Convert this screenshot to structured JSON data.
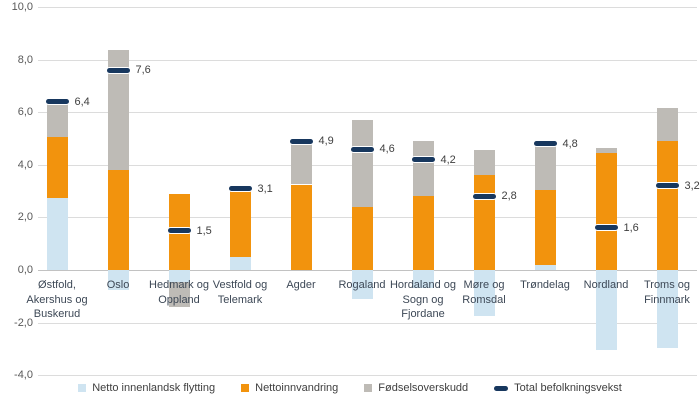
{
  "chart_data": {
    "type": "bar",
    "stacked": true,
    "title": "",
    "categories": [
      "Østfold, Akershus og Buskerud",
      "Oslo",
      "Hedmark og Oppland",
      "Vestfold og Telemark",
      "Agder",
      "Rogaland",
      "Hordaland og Sogn og Fjordane",
      "Møre og Romsdal",
      "Trøndelag",
      "Nordland",
      "Troms og Finnmark"
    ],
    "series": [
      {
        "name": "Netto innenlandsk flytting",
        "color": "#CFE4F1",
        "values": [
          2.75,
          -0.75,
          -0.45,
          0.5,
          0.0,
          -1.1,
          -0.7,
          -1.75,
          0.2,
          -3.05,
          -2.95
        ]
      },
      {
        "name": "Nettoinnvandring",
        "color": "#F2930D",
        "values": [
          2.3,
          3.8,
          2.9,
          2.6,
          3.25,
          2.4,
          2.8,
          3.6,
          2.85,
          4.45,
          4.9
        ]
      },
      {
        "name": "Fødselsoverskudd",
        "color": "#BEBBB6",
        "values": [
          1.35,
          4.55,
          -0.95,
          0.0,
          1.65,
          3.3,
          2.1,
          0.95,
          1.75,
          0.2,
          1.25
        ]
      }
    ],
    "totals": {
      "name": "Total befolkningsvekst",
      "color": "#17375E",
      "values": [
        6.4,
        7.6,
        1.5,
        3.1,
        4.9,
        4.6,
        4.2,
        2.8,
        4.8,
        1.6,
        3.2
      ]
    },
    "y_ticks": [
      10,
      8,
      6,
      4,
      2,
      0,
      -2,
      -4
    ],
    "ylim": [
      -4,
      10
    ],
    "grid": true,
    "legend_position": "bottom",
    "decimal_separator": ","
  },
  "colors": {
    "background": "#FFFFFF",
    "gridline": "#DCDCDC",
    "zero_line": "#C2C2C2",
    "tick_label": "#595959",
    "category_label": "#3D4856",
    "value_label": "#3F3F3F",
    "legend_label": "#404040"
  }
}
